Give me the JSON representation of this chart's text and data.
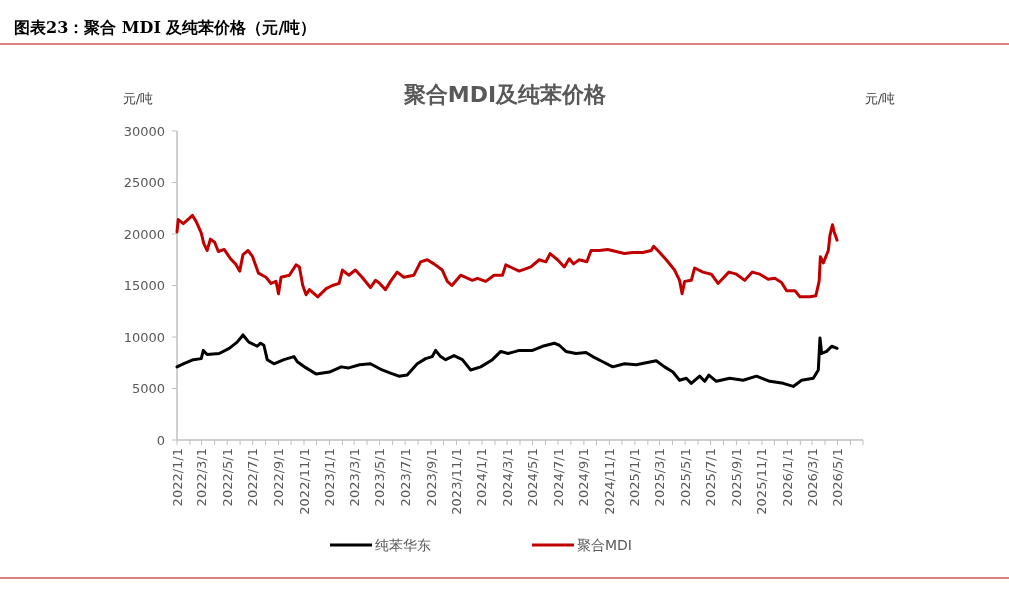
{
  "chart_data": {
    "type": "line",
    "title": "图表23：聚合 MDI 及纯苯价格（元/吨）",
    "subtitle": "聚合MDI及纯苯价格",
    "ylabel": "元/吨",
    "y2label": "元/吨",
    "xlim": [
      "2022-01-01",
      "2026-07-01"
    ],
    "xticks": [
      {
        "value": "2022-01-01",
        "label": "2022/1/1"
      },
      {
        "value": "2022-02-01",
        "label": null
      },
      {
        "value": "2022-03-01",
        "label": "2022/3/1"
      },
      {
        "value": "2022-04-01",
        "label": null
      },
      {
        "value": "2022-05-01",
        "label": "2022/5/1"
      },
      {
        "value": "2022-06-01",
        "label": null
      },
      {
        "value": "2022-07-01",
        "label": "2022/7/1"
      },
      {
        "value": "2022-08-01",
        "label": null
      },
      {
        "value": "2022-09-01",
        "label": "2022/9/1"
      },
      {
        "value": "2022-10-01",
        "label": null
      },
      {
        "value": "2022-11-01",
        "label": "2022/11/1"
      },
      {
        "value": "2022-12-01",
        "label": null
      },
      {
        "value": "2023-01-01",
        "label": "2023/1/1"
      },
      {
        "value": "2023-02-01",
        "label": null
      },
      {
        "value": "2023-03-01",
        "label": "2023/3/1"
      },
      {
        "value": "2023-04-01",
        "label": null
      },
      {
        "value": "2023-05-01",
        "label": "2023/5/1"
      },
      {
        "value": "2023-06-01",
        "label": null
      },
      {
        "value": "2023-07-01",
        "label": "2023/7/1"
      },
      {
        "value": "2023-08-01",
        "label": null
      },
      {
        "value": "2023-09-01",
        "label": "2023/9/1"
      },
      {
        "value": "2023-10-01",
        "label": null
      },
      {
        "value": "2023-11-01",
        "label": "2023/11/1"
      },
      {
        "value": "2023-12-01",
        "label": null
      },
      {
        "value": "2024-01-01",
        "label": "2024/1/1"
      },
      {
        "value": "2024-02-01",
        "label": null
      },
      {
        "value": "2024-03-01",
        "label": "2024/3/1"
      },
      {
        "value": "2024-04-01",
        "label": null
      },
      {
        "value": "2024-05-01",
        "label": "2024/5/1"
      },
      {
        "value": "2024-06-01",
        "label": null
      },
      {
        "value": "2024-07-01",
        "label": "2024/7/1"
      },
      {
        "value": "2024-08-01",
        "label": null
      },
      {
        "value": "2024-09-01",
        "label": "2024/9/1"
      },
      {
        "value": "2024-10-01",
        "label": null
      },
      {
        "value": "2024-11-01",
        "label": "2024/11/1"
      },
      {
        "value": "2024-12-01",
        "label": null
      },
      {
        "value": "2025-01-01",
        "label": "2025/1/1"
      },
      {
        "value": "2025-02-01",
        "label": null
      },
      {
        "value": "2025-03-01",
        "label": "2025/3/1"
      },
      {
        "value": "2025-04-01",
        "label": null
      },
      {
        "value": "2025-05-01",
        "label": "2025/5/1"
      },
      {
        "value": "2025-06-01",
        "label": null
      },
      {
        "value": "2025-07-01",
        "label": "2025/7/1"
      },
      {
        "value": "2025-08-01",
        "label": null
      },
      {
        "value": "2025-09-01",
        "label": "2025/9/1"
      },
      {
        "value": "2025-10-01",
        "label": null
      },
      {
        "value": "2025-11-01",
        "label": "2025/11/1"
      },
      {
        "value": "2025-12-01",
        "label": null
      },
      {
        "value": "2026-01-01",
        "label": "2026/1/1"
      },
      {
        "value": "2026-02-01",
        "label": null
      },
      {
        "value": "2026-03-01",
        "label": "2026/3/1"
      },
      {
        "value": "2026-04-01",
        "label": null
      },
      {
        "value": "2026-05-01",
        "label": "2026/5/1"
      },
      {
        "value": "2026-06-01",
        "label": null
      },
      {
        "value": "2026-07-01",
        "label": null
      }
    ],
    "ylim": [
      0,
      30000
    ],
    "yticks": [
      0,
      5000,
      10000,
      15000,
      20000,
      25000,
      30000
    ],
    "grid": false,
    "legend": "bottom",
    "series": [
      {
        "name": "纯苯华东",
        "color": "#000000",
        "x": [
          "2022-01-01",
          "2022-01-16",
          "2022-02-09",
          "2022-02-28",
          "2022-03-05",
          "2022-03-14",
          "2022-04-12",
          "2022-05-06",
          "2022-05-25",
          "2022-06-08",
          "2022-06-22",
          "2022-07-12",
          "2022-07-20",
          "2022-07-28",
          "2022-08-05",
          "2022-08-21",
          "2022-09-14",
          "2022-10-08",
          "2022-10-16",
          "2022-11-06",
          "2022-11-30",
          "2023-01-01",
          "2023-01-29",
          "2023-02-16",
          "2023-03-14",
          "2023-04-09",
          "2023-05-07",
          "2023-05-27",
          "2023-06-16",
          "2023-07-06",
          "2023-07-30",
          "2023-08-19",
          "2023-09-04",
          "2023-09-12",
          "2023-09-24",
          "2023-10-06",
          "2023-10-26",
          "2023-11-15",
          "2023-12-05",
          "2023-12-29",
          "2024-01-26",
          "2024-02-15",
          "2024-03-03",
          "2024-03-22",
          "2024-03-30",
          "2024-05-01",
          "2024-05-25",
          "2024-06-22",
          "2024-07-04",
          "2024-07-20",
          "2024-08-13",
          "2024-09-06",
          "2024-09-22",
          "2024-10-16",
          "2024-11-09",
          "2024-12-07",
          "2025-01-04",
          "2025-01-28",
          "2025-02-21",
          "2025-03-13",
          "2025-04-02",
          "2025-04-18",
          "2025-05-04",
          "2025-05-16",
          "2025-06-05",
          "2025-06-17",
          "2025-06-27",
          "2025-07-15",
          "2025-08-16",
          "2025-09-17",
          "2025-10-19",
          "2025-11-20",
          "2025-12-22",
          "2026-01-15",
          "2026-02-04",
          "2026-03-04",
          "2026-03-16",
          "2026-03-20",
          "2026-03-24",
          "2026-04-05",
          "2026-04-17",
          "2026-04-30"
        ],
        "values": [
          7100,
          7400,
          7800,
          7900,
          8700,
          8300,
          8400,
          8900,
          9500,
          10200,
          9500,
          9100,
          9400,
          9200,
          7800,
          7400,
          7800,
          8100,
          7600,
          7000,
          6400,
          6600,
          7100,
          7000,
          7300,
          7400,
          6800,
          6500,
          6200,
          6300,
          7400,
          7900,
          8100,
          8700,
          8100,
          7800,
          8200,
          7800,
          6800,
          7100,
          7800,
          8600,
          8400,
          8600,
          8700,
          8700,
          9100,
          9400,
          9200,
          8600,
          8400,
          8500,
          8100,
          7600,
          7100,
          7400,
          7300,
          7500,
          7700,
          7100,
          6600,
          5800,
          6000,
          5500,
          6200,
          5700,
          6300,
          5700,
          6000,
          5800,
          6200,
          5700,
          5500,
          5200,
          5800,
          6000,
          6800,
          9900,
          8400,
          8600,
          9100,
          8900
        ]
      },
      {
        "name": "聚合MDI",
        "color": "#c00000",
        "x": [
          "2022-01-01",
          "2022-01-04",
          "2022-01-16",
          "2022-01-27",
          "2022-02-07",
          "2022-02-16",
          "2022-02-28",
          "2022-03-06",
          "2022-03-14",
          "2022-03-22",
          "2022-04-01",
          "2022-04-10",
          "2022-04-24",
          "2022-05-09",
          "2022-05-21",
          "2022-05-31",
          "2022-06-08",
          "2022-06-20",
          "2022-07-01",
          "2022-07-15",
          "2022-08-02",
          "2022-08-14",
          "2022-08-26",
          "2022-09-01",
          "2022-09-07",
          "2022-09-27",
          "2022-10-13",
          "2022-10-21",
          "2022-10-29",
          "2022-11-06",
          "2022-11-14",
          "2022-12-04",
          "2022-12-24",
          "2023-01-08",
          "2023-01-24",
          "2023-02-01",
          "2023-02-16",
          "2023-03-04",
          "2023-03-20",
          "2023-04-09",
          "2023-04-21",
          "2023-04-29",
          "2023-05-15",
          "2023-05-27",
          "2023-06-12",
          "2023-06-28",
          "2023-07-22",
          "2023-08-07",
          "2023-08-23",
          "2023-09-08",
          "2023-09-28",
          "2023-10-10",
          "2023-10-21",
          "2023-11-11",
          "2023-12-09",
          "2023-12-21",
          "2024-01-10",
          "2024-01-30",
          "2024-02-19",
          "2024-02-27",
          "2024-03-14",
          "2024-03-30",
          "2024-04-27",
          "2024-05-17",
          "2024-06-02",
          "2024-06-12",
          "2024-06-30",
          "2024-07-16",
          "2024-07-28",
          "2024-08-07",
          "2024-08-21",
          "2024-09-08",
          "2024-09-18",
          "2024-10-08",
          "2024-10-28",
          "2024-11-17",
          "2024-12-07",
          "2024-12-27",
          "2025-01-20",
          "2025-02-09",
          "2025-02-15",
          "2025-02-25",
          "2025-03-17",
          "2025-04-06",
          "2025-04-18",
          "2025-04-24",
          "2025-04-30",
          "2025-05-16",
          "2025-05-24",
          "2025-06-13",
          "2025-07-03",
          "2025-07-19",
          "2025-07-31",
          "2025-08-14",
          "2025-09-01",
          "2025-09-21",
          "2025-10-09",
          "2025-10-27",
          "2025-11-16",
          "2025-12-02",
          "2025-12-18",
          "2025-12-30",
          "2026-01-19",
          "2026-01-31",
          "2026-02-24",
          "2026-03-10",
          "2026-03-18",
          "2026-03-21",
          "2026-03-28",
          "2026-04-09",
          "2026-04-13",
          "2026-04-19",
          "2026-04-23",
          "2026-04-30"
        ],
        "values": [
          20200,
          21400,
          21000,
          21400,
          21800,
          21200,
          20100,
          19100,
          18400,
          19500,
          19200,
          18300,
          18500,
          17600,
          17100,
          16400,
          18000,
          18400,
          17800,
          16200,
          15800,
          15200,
          15400,
          14200,
          15800,
          16000,
          17000,
          16800,
          15000,
          14100,
          14600,
          13900,
          14700,
          15000,
          15200,
          16500,
          16000,
          16500,
          15800,
          14800,
          15500,
          15300,
          14600,
          15400,
          16300,
          15800,
          16000,
          17300,
          17500,
          17100,
          16500,
          15400,
          15000,
          16000,
          15500,
          15700,
          15400,
          16000,
          16000,
          17000,
          16700,
          16400,
          16800,
          17500,
          17300,
          18100,
          17500,
          16800,
          17600,
          17100,
          17500,
          17300,
          18400,
          18400,
          18500,
          18300,
          18100,
          18200,
          18200,
          18400,
          18800,
          18400,
          17500,
          16500,
          15500,
          14200,
          15400,
          15500,
          16700,
          16300,
          16100,
          15200,
          15700,
          16300,
          16100,
          15500,
          16300,
          16100,
          15600,
          15700,
          15300,
          14500,
          14500,
          13900,
          13900,
          14000,
          15400,
          17800,
          17200,
          18400,
          19900,
          20900,
          20200,
          19400
        ]
      }
    ]
  }
}
